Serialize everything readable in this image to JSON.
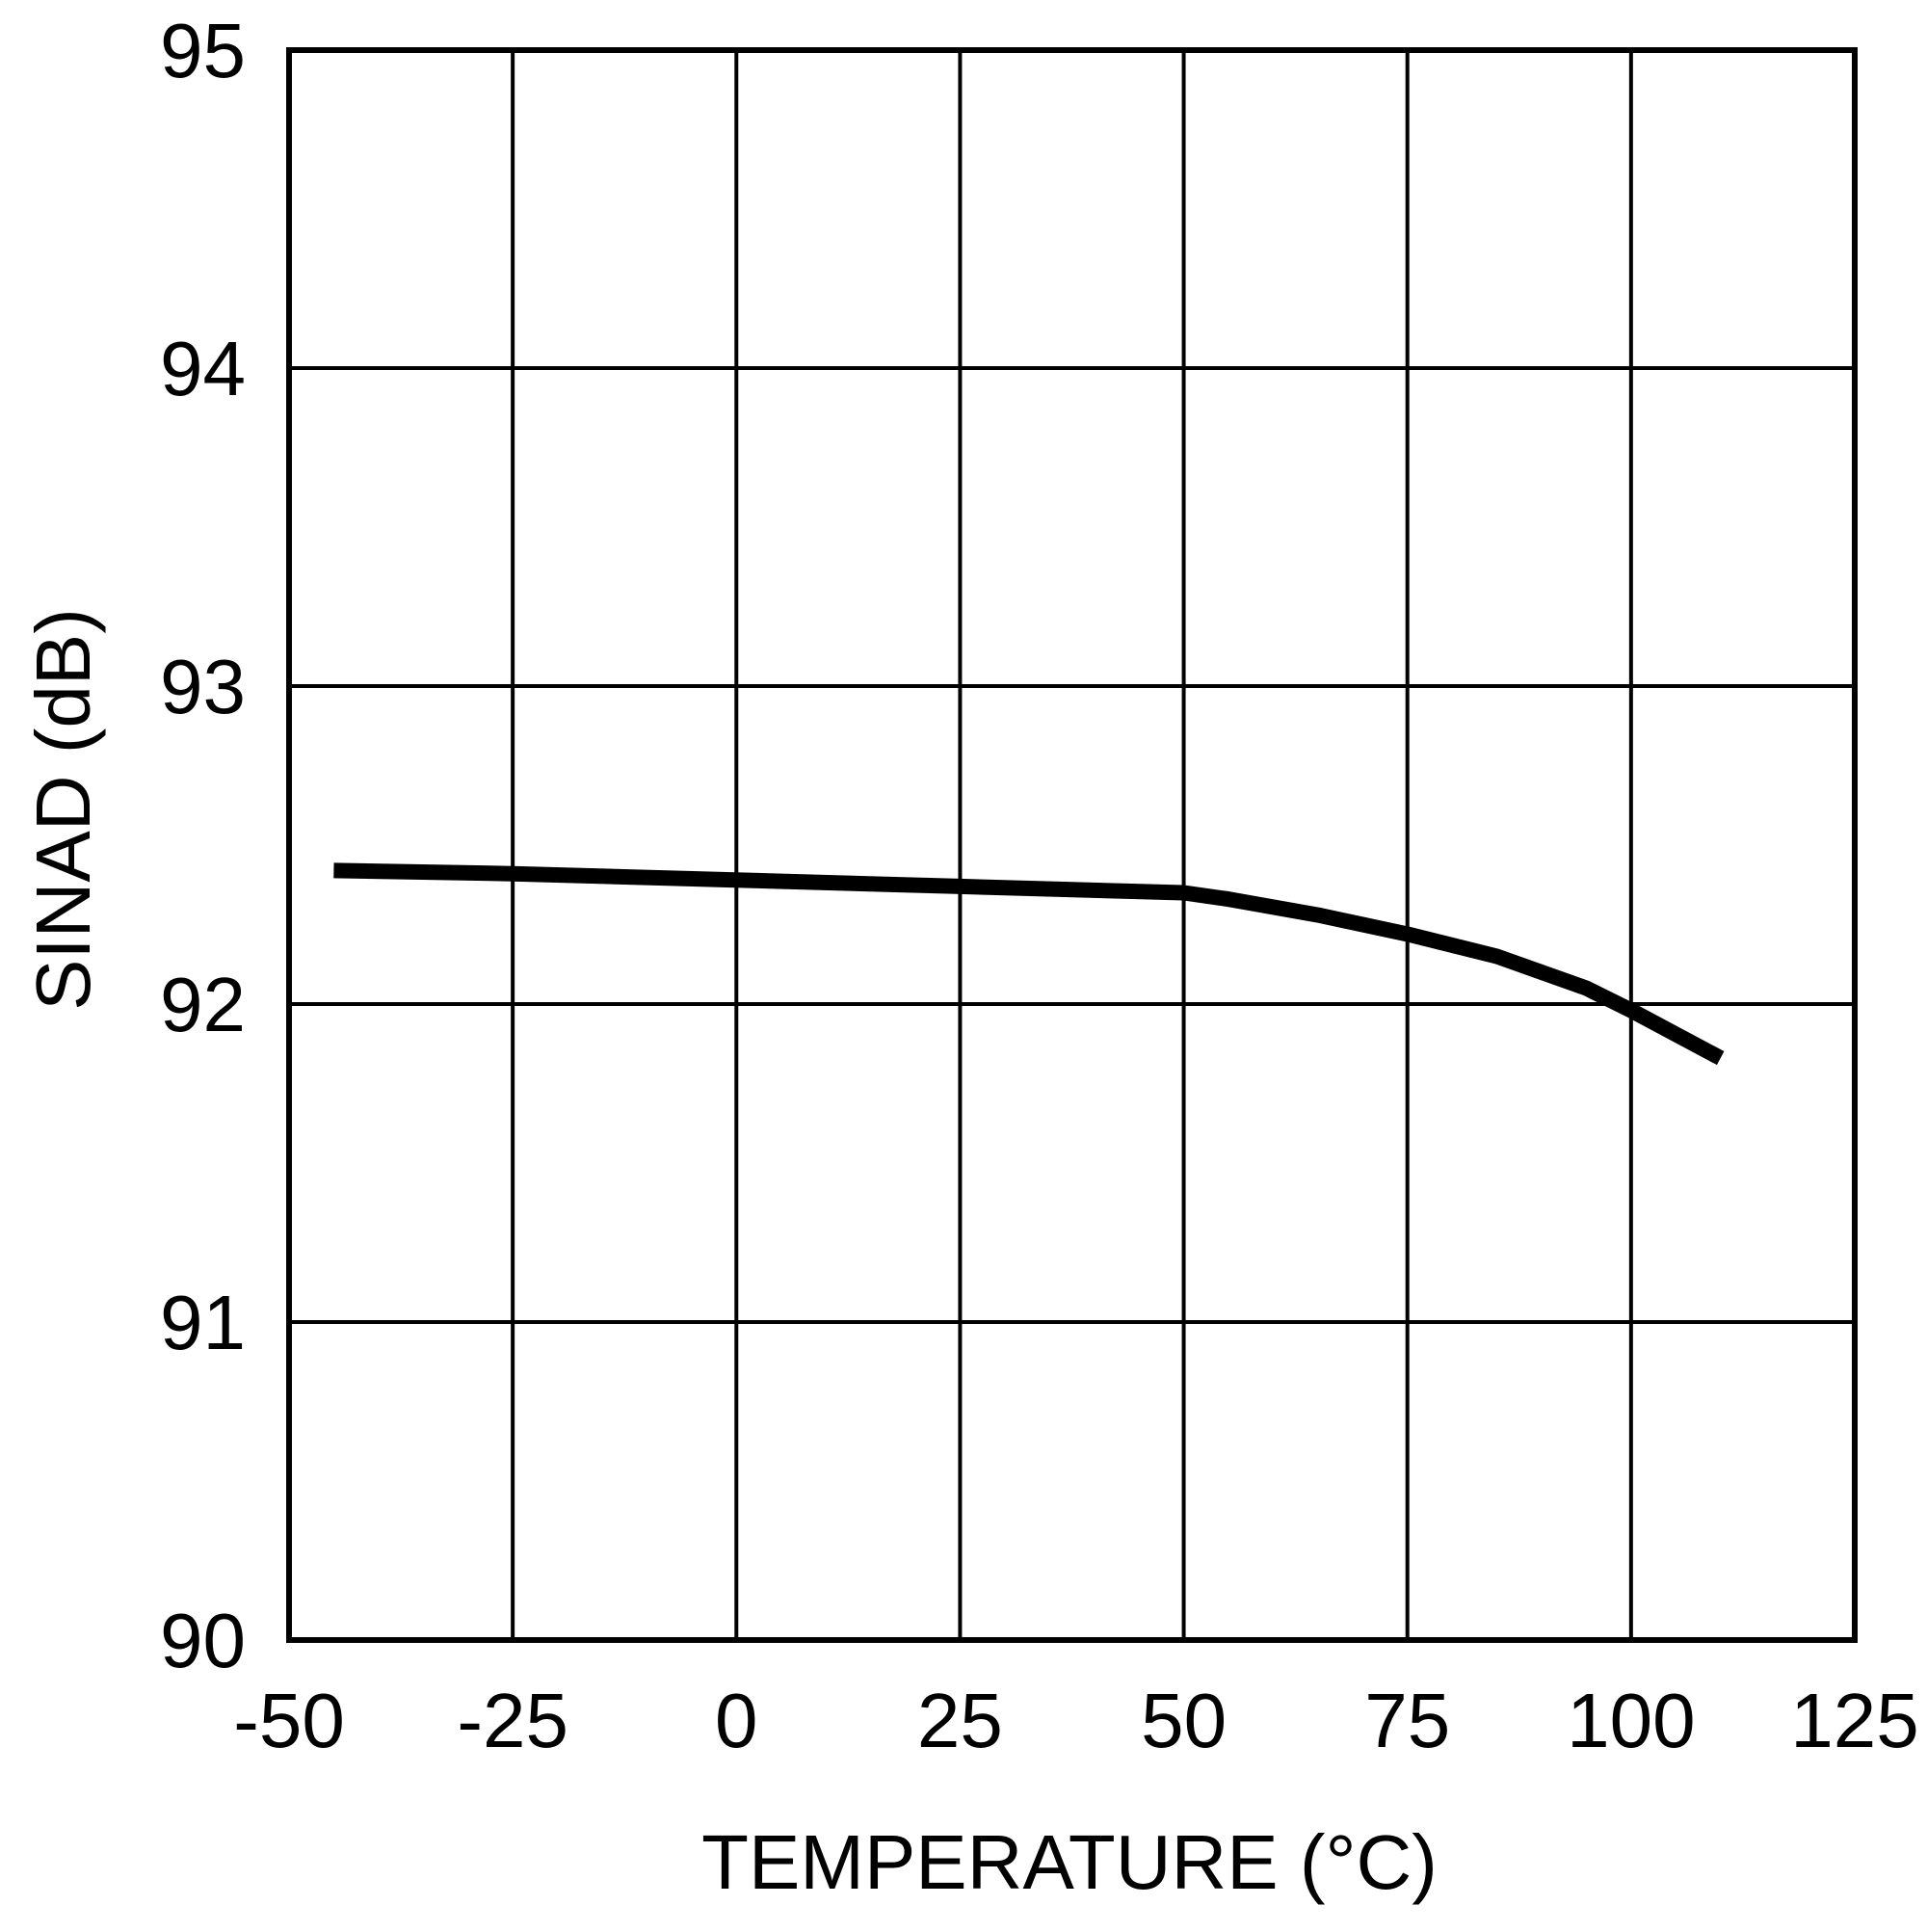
{
  "chart_data": {
    "type": "line",
    "title": "",
    "xlabel": "TEMPERATURE (°C)",
    "ylabel": "SINAD (dB)",
    "xlim": [
      -50,
      125
    ],
    "ylim": [
      90,
      95
    ],
    "x_ticks": [
      -50,
      -25,
      0,
      25,
      50,
      75,
      100,
      125
    ],
    "x_tick_labels": [
      "-50",
      "-25",
      "0",
      "25",
      "50",
      "75",
      "100",
      "125"
    ],
    "y_ticks": [
      90,
      91,
      92,
      93,
      94,
      95
    ],
    "y_tick_labels": [
      "90",
      "91",
      "92",
      "93",
      "94",
      "95"
    ],
    "grid": true,
    "legend": false,
    "series": [
      {
        "color": "#000000",
        "x": [
          -45,
          -25,
          0,
          25,
          50,
          55,
          65,
          75,
          85,
          95,
          100,
          110
        ],
        "y": [
          92.42,
          92.41,
          92.39,
          92.37,
          92.35,
          92.33,
          92.28,
          92.22,
          92.15,
          92.05,
          91.98,
          91.83
        ]
      }
    ]
  }
}
